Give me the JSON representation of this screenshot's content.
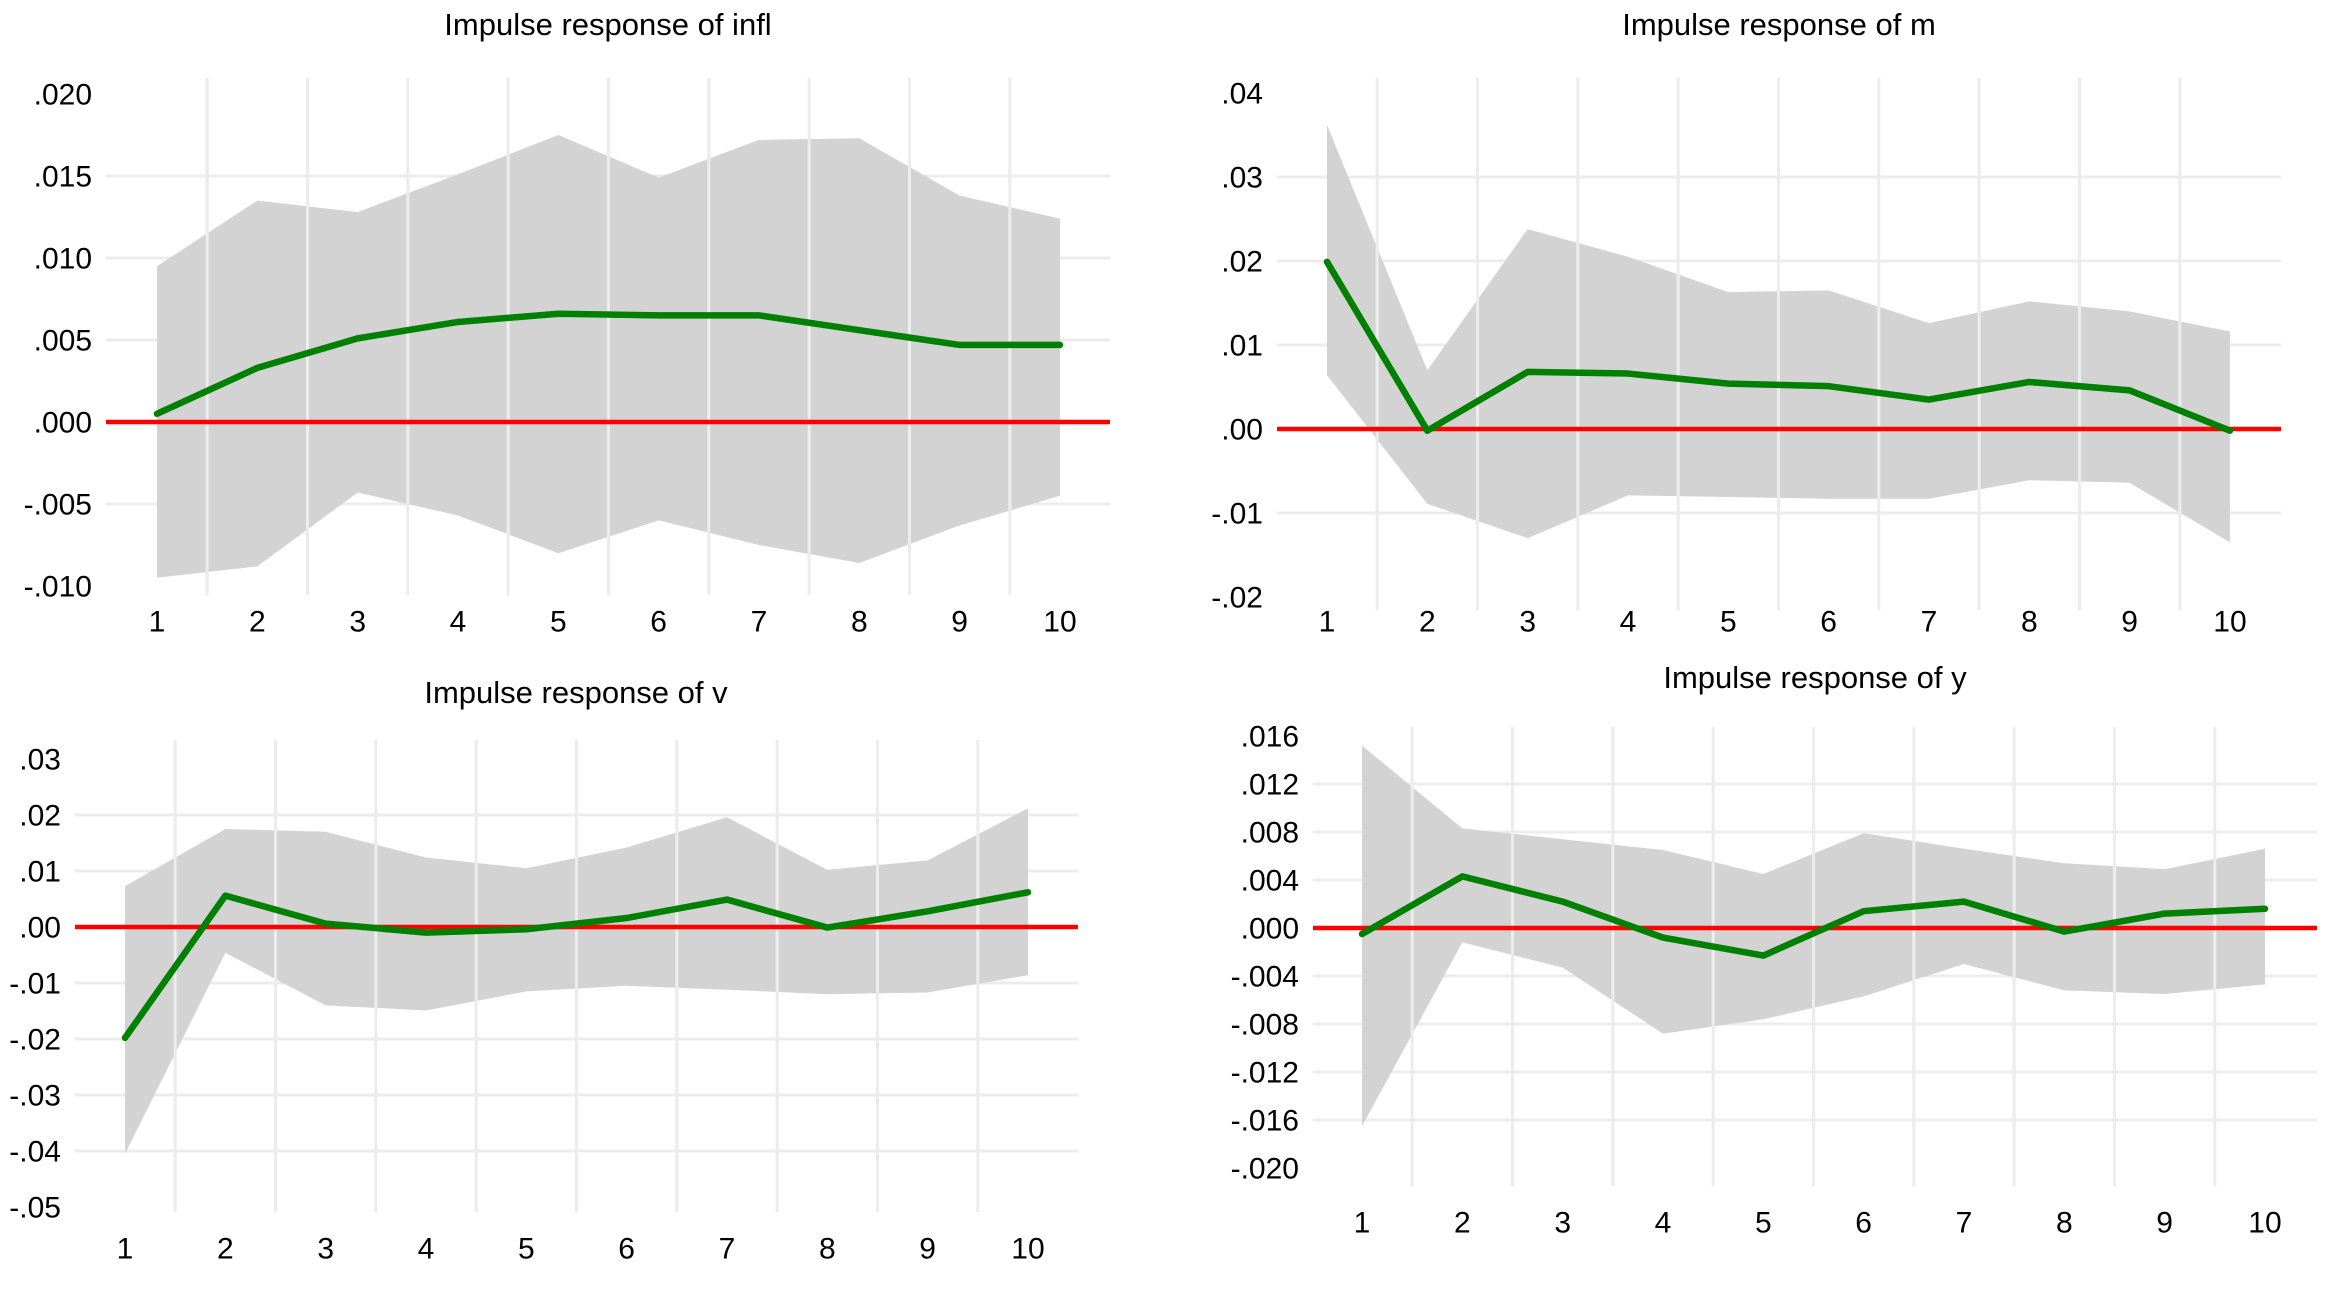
{
  "page": {
    "background": "#ffffff"
  },
  "colors": {
    "response_line": "#008000",
    "zero_line": "#ff0000",
    "confidence_band": "#d3d3d3",
    "gridline": "#ececec",
    "band_gridline_overlay": "rgba(255,255,255,0.6)",
    "text": "#000000"
  },
  "chart_data": [
    {
      "id": "infl",
      "type": "line",
      "title": "Impulse response of infl",
      "x": [
        1,
        2,
        3,
        4,
        5,
        6,
        7,
        8,
        9,
        10
      ],
      "x_tick_labels": [
        "1",
        "2",
        "3",
        "4",
        "5",
        "6",
        "7",
        "8",
        "9",
        "10"
      ],
      "y_ticks": [
        {
          "label": ".020",
          "value": 0.02
        },
        {
          "label": ".015",
          "value": 0.015
        },
        {
          "label": ".010",
          "value": 0.01
        },
        {
          "label": ".005",
          "value": 0.005
        },
        {
          "label": ".000",
          "value": 0.0
        },
        {
          "label": "-.005",
          "value": -0.005
        },
        {
          "label": "-.010",
          "value": -0.01
        }
      ],
      "series": [
        {
          "name": "impulse response",
          "role": "mean",
          "values": [
            0.0005,
            0.0033,
            0.0051,
            0.0061,
            0.0066,
            0.0065,
            0.0065,
            0.0056,
            0.0047,
            0.0047
          ]
        },
        {
          "name": "upper confidence band",
          "role": "upper",
          "values": [
            0.0095,
            0.0135,
            0.0128,
            0.0151,
            0.0175,
            0.0149,
            0.0172,
            0.0173,
            0.0138,
            0.0124
          ]
        },
        {
          "name": "lower confidence band",
          "role": "lower",
          "values": [
            -0.0095,
            -0.0088,
            -0.0043,
            -0.0057,
            -0.008,
            -0.006,
            -0.0075,
            -0.0086,
            -0.0063,
            -0.0045
          ]
        }
      ],
      "zero_line": 0,
      "xlim": [
        0.5,
        10.5
      ],
      "ylim": [
        -0.0106,
        0.021
      ],
      "grid": true,
      "legend": "none"
    },
    {
      "id": "m",
      "type": "line",
      "title": "Impulse response of m",
      "x": [
        1,
        2,
        3,
        4,
        5,
        6,
        7,
        8,
        9,
        10
      ],
      "x_tick_labels": [
        "1",
        "2",
        "3",
        "4",
        "5",
        "6",
        "7",
        "8",
        "9",
        "10"
      ],
      "y_ticks": [
        {
          "label": ".04",
          "value": 0.04
        },
        {
          "label": ".03",
          "value": 0.03
        },
        {
          "label": ".02",
          "value": 0.02
        },
        {
          "label": ".01",
          "value": 0.01
        },
        {
          "label": ".00",
          "value": 0.0
        },
        {
          "label": "-.01",
          "value": -0.01
        },
        {
          "label": "-.02",
          "value": -0.02
        }
      ],
      "series": [
        {
          "name": "impulse response",
          "role": "mean",
          "values": [
            0.0199,
            -0.0002,
            0.0068,
            0.0066,
            0.0054,
            0.0051,
            0.0035,
            0.0056,
            0.0046,
            -0.0002
          ]
        },
        {
          "name": "upper confidence band",
          "role": "upper",
          "values": [
            0.0362,
            0.007,
            0.0238,
            0.0205,
            0.0163,
            0.0165,
            0.0126,
            0.0152,
            0.014,
            0.0116
          ]
        },
        {
          "name": "lower confidence band",
          "role": "lower",
          "values": [
            0.0064,
            -0.0089,
            -0.013,
            -0.0079,
            -0.0081,
            -0.0083,
            -0.0083,
            -0.0061,
            -0.0064,
            -0.0135
          ]
        }
      ],
      "zero_line": 0,
      "xlim": [
        0.5,
        10.5
      ],
      "ylim": [
        -0.0216,
        0.0418
      ],
      "grid": true,
      "legend": "none"
    },
    {
      "id": "v",
      "type": "line",
      "title": "Impulse response of v",
      "x": [
        1,
        2,
        3,
        4,
        5,
        6,
        7,
        8,
        9,
        10
      ],
      "x_tick_labels": [
        "1",
        "2",
        "3",
        "4",
        "5",
        "6",
        "7",
        "8",
        "9",
        "10"
      ],
      "y_ticks": [
        {
          "label": ".03",
          "value": 0.03
        },
        {
          "label": ".02",
          "value": 0.02
        },
        {
          "label": ".01",
          "value": 0.01
        },
        {
          "label": ".00",
          "value": 0.0
        },
        {
          "label": "-.01",
          "value": -0.01
        },
        {
          "label": "-.02",
          "value": -0.02
        },
        {
          "label": "-.03",
          "value": -0.03
        },
        {
          "label": "-.04",
          "value": -0.04
        },
        {
          "label": "-.05",
          "value": -0.05
        }
      ],
      "series": [
        {
          "name": "impulse response",
          "role": "mean",
          "values": [
            -0.0198,
            0.0056,
            0.0006,
            -0.001,
            -0.0004,
            0.0016,
            0.0049,
            -0.0001,
            0.0028,
            0.0062
          ]
        },
        {
          "name": "upper confidence band",
          "role": "upper",
          "values": [
            0.0073,
            0.0175,
            0.017,
            0.0124,
            0.0105,
            0.0142,
            0.0196,
            0.0102,
            0.0119,
            0.0212
          ]
        },
        {
          "name": "lower confidence band",
          "role": "lower",
          "values": [
            -0.0405,
            -0.0046,
            -0.014,
            -0.0149,
            -0.0115,
            -0.0105,
            -0.0112,
            -0.012,
            -0.0117,
            -0.0086
          ]
        }
      ],
      "zero_line": 0,
      "xlim": [
        0.5,
        10.5
      ],
      "ylim": [
        -0.0509,
        0.0334
      ],
      "grid": true,
      "legend": "none"
    },
    {
      "id": "y",
      "type": "line",
      "title": "Impulse response of y",
      "x": [
        1,
        2,
        3,
        4,
        5,
        6,
        7,
        8,
        9,
        10
      ],
      "x_tick_labels": [
        "1",
        "2",
        "3",
        "4",
        "5",
        "6",
        "7",
        "8",
        "9",
        "10"
      ],
      "y_ticks": [
        {
          "label": ".016",
          "value": 0.016
        },
        {
          "label": ".012",
          "value": 0.012
        },
        {
          "label": ".008",
          "value": 0.008
        },
        {
          "label": ".004",
          "value": 0.004
        },
        {
          "label": ".000",
          "value": 0.0
        },
        {
          "label": "-.004",
          "value": -0.004
        },
        {
          "label": "-.008",
          "value": -0.008
        },
        {
          "label": "-.012",
          "value": -0.012
        },
        {
          "label": "-.016",
          "value": -0.016
        },
        {
          "label": "-.020",
          "value": -0.02
        }
      ],
      "series": [
        {
          "name": "impulse response",
          "role": "mean",
          "values": [
            -0.0005,
            0.0043,
            0.0022,
            -0.0008,
            -0.0023,
            0.0014,
            0.0022,
            -0.0003,
            0.0012,
            0.0016
          ]
        },
        {
          "name": "upper confidence band",
          "role": "upper",
          "values": [
            0.0152,
            0.0083,
            0.0074,
            0.0065,
            0.0045,
            0.0079,
            0.0066,
            0.0054,
            0.0049,
            0.0066
          ]
        },
        {
          "name": "lower confidence band",
          "role": "lower",
          "values": [
            -0.0165,
            -0.0012,
            -0.0033,
            -0.0088,
            -0.0076,
            -0.0057,
            -0.003,
            -0.0052,
            -0.0055,
            -0.0047
          ]
        }
      ],
      "zero_line": 0,
      "xlim": [
        0.5,
        10.5
      ],
      "ylim": [
        -0.0215,
        0.0168
      ],
      "grid": true,
      "legend": "none"
    }
  ]
}
